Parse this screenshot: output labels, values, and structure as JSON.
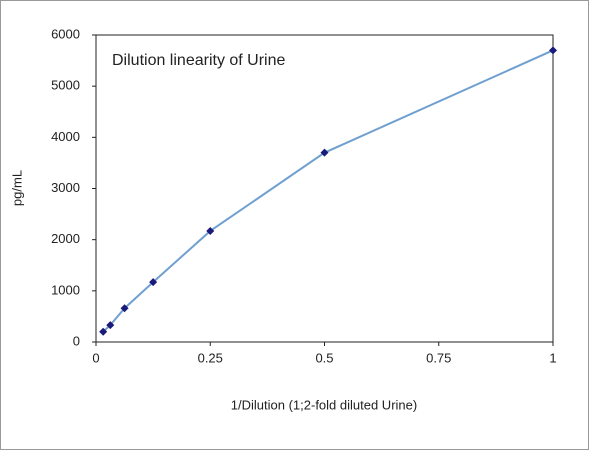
{
  "chart_data": {
    "type": "line",
    "title": "Dilution linearity of Urine",
    "xlabel": "1/Dilution (1;2-fold diluted Urine)",
    "ylabel": "pg/mL",
    "x": [
      0.015625,
      0.03125,
      0.0625,
      0.125,
      0.25,
      0.5,
      1
    ],
    "values": [
      200,
      330,
      660,
      1170,
      2170,
      3700,
      5700
    ],
    "color": "#6fa0d0",
    "marker_color": "#1a1a7a",
    "xlim": [
      0,
      1
    ],
    "xticks": [
      0,
      0.25,
      0.5,
      0.75,
      1
    ],
    "ylim": [
      0,
      6000
    ],
    "yticks": [
      0,
      1000,
      2000,
      3000,
      4000,
      5000,
      6000
    ],
    "grid": false
  }
}
